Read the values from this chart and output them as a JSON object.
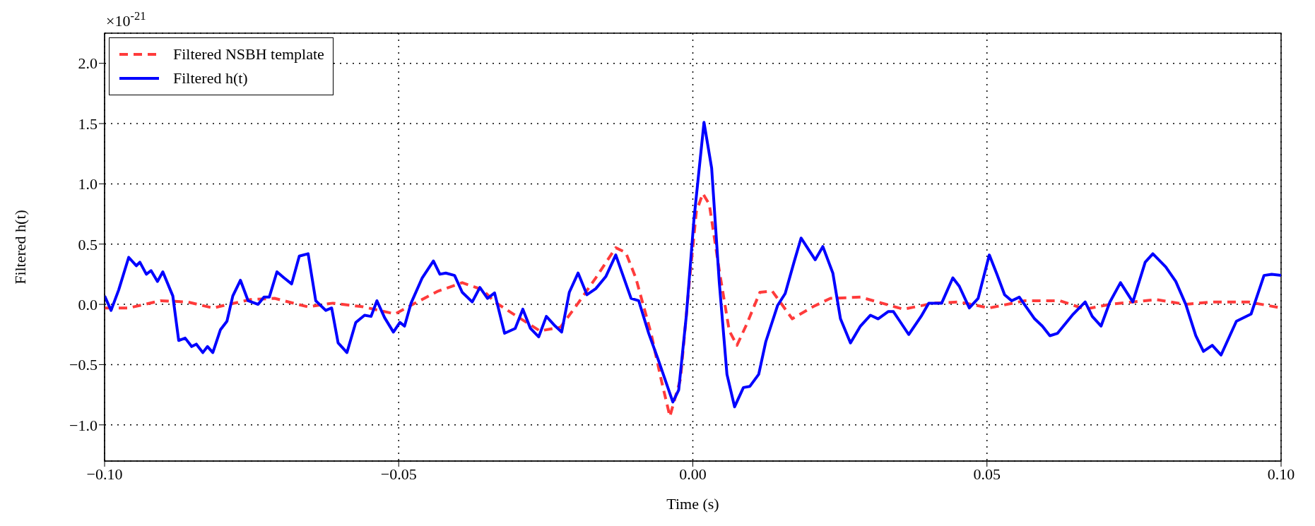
{
  "chart_data": {
    "type": "line",
    "xlabel": "Time (s)",
    "ylabel": "Filtered h(t)",
    "annotations": [
      "×10$^{-21}$"
    ],
    "xlim": [
      -0.1,
      0.1
    ],
    "xticks": [
      {
        "value": -0.1,
        "label": "−0.10"
      },
      {
        "value": -0.05,
        "label": "−0.05"
      },
      {
        "value": 0,
        "label": "0.00"
      },
      {
        "value": 0.05,
        "label": "0.05"
      },
      {
        "value": 0.1,
        "label": "0.10"
      }
    ],
    "ylim": [
      -1.3,
      2.25
    ],
    "yticks": [
      {
        "value": -1,
        "label": "−1.0"
      },
      {
        "value": -0.5,
        "label": "−0.5"
      },
      {
        "value": 0,
        "label": "0.0"
      },
      {
        "value": 0.5,
        "label": "0.5"
      },
      {
        "value": 1,
        "label": "1.0"
      },
      {
        "value": 1.5,
        "label": "1.5"
      },
      {
        "value": 2,
        "label": "2.0"
      }
    ],
    "grid": true,
    "legend": "top left",
    "marker": "none",
    "series": [
      {
        "name": "Filtered NSBH template",
        "color": "#ff3b3b",
        "line_style": "dashed",
        "x": [
          -0.1,
          -0.0959,
          -0.0905,
          -0.0859,
          -0.0816,
          -0.0752,
          -0.0711,
          -0.0655,
          -0.0612,
          -0.0561,
          -0.0506,
          -0.0476,
          -0.0433,
          -0.0392,
          -0.0357,
          -0.0337,
          -0.0302,
          -0.026,
          -0.0225,
          -0.0195,
          -0.0165,
          -0.0131,
          -0.0114,
          -0.0097,
          -0.0071,
          -0.0054,
          -0.0039,
          -0.0021,
          -0.0006,
          0.0006,
          0.0017,
          0.0028,
          0.0045,
          0.0062,
          0.0075,
          0.0092,
          0.0114,
          0.0135,
          0.0169,
          0.0204,
          0.0234,
          0.0285,
          0.0358,
          0.041,
          0.0453,
          0.0504,
          0.0564,
          0.0624,
          0.0667,
          0.0709,
          0.0787,
          0.0838,
          0.0881,
          0.0945,
          0.1
        ],
        "values": [
          -0.03,
          -0.03,
          0.03,
          0.02,
          -0.03,
          0.04,
          0.05,
          -0.02,
          0.01,
          -0.02,
          -0.08,
          0.0,
          0.11,
          0.18,
          0.12,
          0.02,
          -0.09,
          -0.22,
          -0.19,
          0.01,
          0.22,
          0.47,
          0.43,
          0.22,
          -0.24,
          -0.62,
          -0.93,
          -0.62,
          0.18,
          0.77,
          0.92,
          0.83,
          0.28,
          -0.22,
          -0.34,
          -0.16,
          0.1,
          0.11,
          -0.12,
          -0.02,
          0.05,
          0.06,
          -0.04,
          0.01,
          0.02,
          -0.03,
          0.03,
          0.03,
          -0.04,
          0.0,
          0.04,
          0.0,
          0.02,
          0.02,
          -0.03
        ]
      },
      {
        "name": "Filtered h(t)",
        "color": "#0000ff",
        "line_style": "solid",
        "x": [
          -0.1,
          -0.0989,
          -0.0976,
          -0.0959,
          -0.0946,
          -0.094,
          -0.0929,
          -0.0921,
          -0.091,
          -0.0901,
          -0.0884,
          -0.0874,
          -0.0863,
          -0.0852,
          -0.0844,
          -0.0833,
          -0.0825,
          -0.0816,
          -0.0803,
          -0.0792,
          -0.0782,
          -0.0769,
          -0.0756,
          -0.0739,
          -0.0729,
          -0.072,
          -0.0707,
          -0.0695,
          -0.0682,
          -0.0669,
          -0.0654,
          -0.0641,
          -0.0624,
          -0.0614,
          -0.0603,
          -0.0588,
          -0.0573,
          -0.0558,
          -0.0547,
          -0.0537,
          -0.0524,
          -0.0509,
          -0.0498,
          -0.049,
          -0.0479,
          -0.046,
          -0.0441,
          -0.043,
          -0.042,
          -0.0405,
          -0.0392,
          -0.0375,
          -0.0362,
          -0.0349,
          -0.0337,
          -0.032,
          -0.0302,
          -0.0289,
          -0.0276,
          -0.0262,
          -0.0249,
          -0.0234,
          -0.0223,
          -0.021,
          -0.0195,
          -0.018,
          -0.0165,
          -0.0148,
          -0.0131,
          -0.0105,
          -0.0092,
          -0.0075,
          -0.0058,
          -0.0034,
          -0.0024,
          -0.0011,
          0.0002,
          0.0019,
          0.0032,
          0.0045,
          0.0058,
          0.0071,
          0.0086,
          0.0097,
          0.0112,
          0.0124,
          0.0144,
          0.0157,
          0.0172,
          0.0184,
          0.0208,
          0.0221,
          0.0238,
          0.0251,
          0.0268,
          0.0285,
          0.0302,
          0.0315,
          0.0332,
          0.0341,
          0.0367,
          0.0388,
          0.0401,
          0.0423,
          0.0442,
          0.0453,
          0.047,
          0.0485,
          0.0504,
          0.0517,
          0.053,
          0.0542,
          0.0555,
          0.0581,
          0.0594,
          0.0607,
          0.062,
          0.0645,
          0.0667,
          0.0679,
          0.0694,
          0.0709,
          0.0727,
          0.0748,
          0.0769,
          0.0782,
          0.0804,
          0.0821,
          0.0838,
          0.0855,
          0.0868,
          0.0883,
          0.0898,
          0.0924,
          0.0949,
          0.0971,
          0.0984,
          0.1
        ],
        "values": [
          0.07,
          -0.05,
          0.12,
          0.39,
          0.32,
          0.35,
          0.25,
          0.28,
          0.19,
          0.27,
          0.07,
          -0.3,
          -0.28,
          -0.35,
          -0.33,
          -0.4,
          -0.35,
          -0.4,
          -0.21,
          -0.14,
          0.07,
          0.2,
          0.03,
          0.0,
          0.06,
          0.06,
          0.27,
          0.22,
          0.17,
          0.4,
          0.42,
          0.03,
          -0.05,
          -0.03,
          -0.32,
          -0.4,
          -0.15,
          -0.09,
          -0.1,
          0.03,
          -0.11,
          -0.23,
          -0.15,
          -0.18,
          0.01,
          0.22,
          0.36,
          0.25,
          0.26,
          0.24,
          0.1,
          0.02,
          0.14,
          0.05,
          0.095,
          -0.24,
          -0.2,
          -0.04,
          -0.2,
          -0.27,
          -0.1,
          -0.18,
          -0.23,
          0.1,
          0.26,
          0.08,
          0.13,
          0.23,
          0.41,
          0.05,
          0.03,
          -0.24,
          -0.47,
          -0.81,
          -0.71,
          -0.09,
          0.71,
          1.51,
          1.13,
          0.18,
          -0.58,
          -0.85,
          -0.69,
          -0.68,
          -0.58,
          -0.31,
          -0.01,
          0.09,
          0.35,
          0.55,
          0.37,
          0.48,
          0.26,
          -0.12,
          -0.32,
          -0.18,
          -0.09,
          -0.12,
          -0.06,
          -0.06,
          -0.25,
          -0.1,
          0.01,
          0.01,
          0.22,
          0.15,
          -0.03,
          0.05,
          0.41,
          0.25,
          0.08,
          0.03,
          0.06,
          -0.12,
          -0.18,
          -0.26,
          -0.24,
          -0.09,
          0.02,
          -0.1,
          -0.18,
          0.02,
          0.18,
          0.02,
          0.35,
          0.42,
          0.31,
          0.19,
          0.0,
          -0.26,
          -0.39,
          -0.34,
          -0.42,
          -0.14,
          -0.08,
          0.24,
          0.25,
          0.24
        ]
      }
    ]
  }
}
